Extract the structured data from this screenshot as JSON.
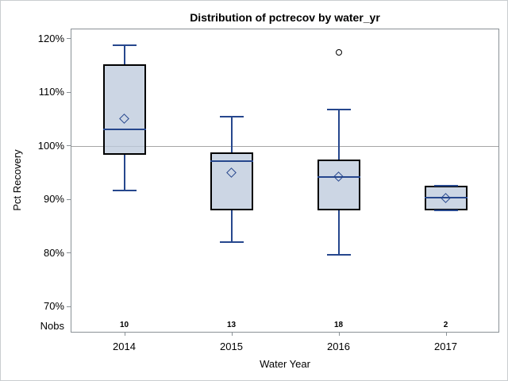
{
  "chart_data": {
    "type": "box",
    "title": "Distribution of pctrecov by water_yr",
    "xlabel": "Water Year",
    "ylabel": "Pct Recovery",
    "categories": [
      "2014",
      "2015",
      "2016",
      "2017"
    ],
    "nobs_label": "Nobs",
    "reference_line": 100,
    "y_axis": {
      "unit": "%",
      "min": 70,
      "max": 120,
      "grid": false
    },
    "y_ticks": [
      {
        "value": 120,
        "label": "120%"
      },
      {
        "value": 110,
        "label": "110%"
      },
      {
        "value": 100,
        "label": "100%"
      },
      {
        "value": 90,
        "label": "90%"
      },
      {
        "value": 80,
        "label": "80%"
      },
      {
        "value": 70,
        "label": "70%"
      }
    ],
    "boxes": [
      {
        "category": "2014",
        "n": 10,
        "whisker_low": 91.7,
        "q1": 98.3,
        "median": 103.1,
        "q3": 115.2,
        "whisker_high": 118.8,
        "mean": 105.1,
        "outliers": []
      },
      {
        "category": "2015",
        "n": 13,
        "whisker_low": 82.0,
        "q1": 88.0,
        "median": 97.2,
        "q3": 98.8,
        "whisker_high": 105.4,
        "mean": 95.0,
        "outliers": []
      },
      {
        "category": "2016",
        "n": 18,
        "whisker_low": 79.7,
        "q1": 88.0,
        "median": 94.2,
        "q3": 97.4,
        "whisker_high": 106.7,
        "mean": 94.3,
        "outliers": [
          117.4
        ]
      },
      {
        "category": "2017",
        "n": 2,
        "whisker_low": 88.0,
        "q1": 88.0,
        "median": 90.3,
        "q3": 92.5,
        "whisker_high": 92.5,
        "mean": 90.3,
        "outliers": []
      }
    ],
    "colors": {
      "box_fill": "#ccd6e4",
      "box_border": "#000000",
      "line_blue": "#26478d",
      "reference_line": "#a6a6a6",
      "axis_frame": "#8a9196"
    },
    "legend": null
  }
}
